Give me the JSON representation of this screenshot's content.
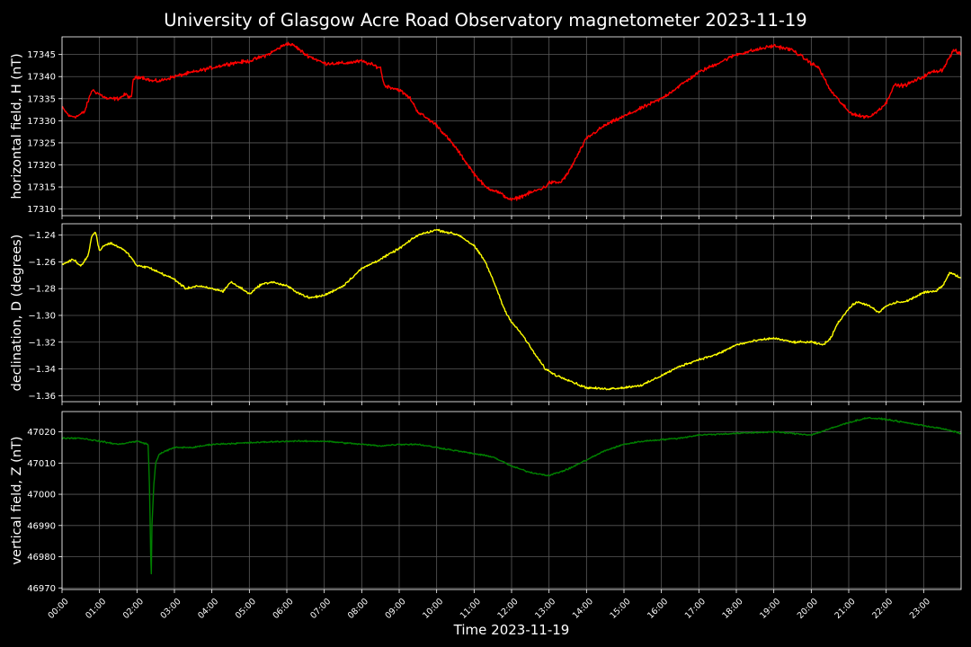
{
  "title": "University of Glasgow Acre Road Observatory magnetometer 2023-11-19",
  "colors": {
    "background": "#000000",
    "text": "#ffffff",
    "grid": "#5a5a5a"
  },
  "chart_data": {
    "type": "line",
    "grid": true,
    "xlabel": "Time 2023-11-19",
    "xlim": [
      0,
      24
    ],
    "x_ticks": [
      "00:00",
      "01:00",
      "02:00",
      "03:00",
      "04:00",
      "05:00",
      "06:00",
      "07:00",
      "08:00",
      "09:00",
      "10:00",
      "11:00",
      "12:00",
      "13:00",
      "14:00",
      "15:00",
      "16:00",
      "17:00",
      "18:00",
      "19:00",
      "20:00",
      "21:00",
      "22:00",
      "23:00"
    ],
    "x_ticks_hours": [
      0,
      1,
      2,
      3,
      4,
      5,
      6,
      7,
      8,
      9,
      10,
      11,
      12,
      13,
      14,
      15,
      16,
      17,
      18,
      19,
      20,
      21,
      22,
      23
    ],
    "panels": [
      {
        "ylabel": "horizontal field, H (nT)",
        "color": "#ff0000",
        "ylim": [
          17308.5,
          17349
        ],
        "yticks": [
          17310,
          17315,
          17320,
          17325,
          17330,
          17335,
          17340,
          17345
        ],
        "ytick_labels": [
          "17310",
          "17315",
          "17320",
          "17325",
          "17330",
          "17335",
          "17340",
          "17345"
        ],
        "noise": 0.6,
        "series": {
          "x": [
            0,
            0.2,
            0.4,
            0.6,
            0.8,
            1.0,
            1.2,
            1.5,
            1.7,
            1.85,
            1.9,
            2.1,
            2.4,
            2.6,
            3.0,
            3.5,
            4.0,
            4.5,
            5.0,
            5.5,
            6.0,
            6.2,
            6.5,
            7.0,
            7.5,
            8.0,
            8.5,
            8.6,
            9.0,
            9.3,
            9.5,
            10.0,
            10.5,
            11.0,
            11.3,
            11.6,
            12.0,
            12.3,
            12.6,
            12.9,
            13.0,
            13.3,
            13.5,
            14.0,
            14.5,
            15.0,
            15.5,
            16.0,
            16.5,
            17.0,
            17.5,
            18.0,
            18.5,
            19.0,
            19.5,
            20.0,
            20.2,
            20.5,
            20.8,
            21.0,
            21.3,
            21.6,
            22.0,
            22.2,
            22.5,
            23.0,
            23.2,
            23.5,
            23.8,
            24.0
          ],
          "y": [
            17333,
            17331,
            17331,
            17332,
            17337,
            17336,
            17335,
            17335,
            17336,
            17335,
            17339.5,
            17340,
            17339,
            17339,
            17340,
            17341,
            17342,
            17343,
            17343.5,
            17345,
            17347.5,
            17347,
            17345,
            17343,
            17343,
            17343.5,
            17342,
            17338,
            17337,
            17335,
            17332,
            17329,
            17324,
            17318,
            17315,
            17314,
            17312,
            17313,
            17314,
            17315,
            17316,
            17316,
            17318,
            17326,
            17329,
            17331,
            17333,
            17335,
            17338,
            17341,
            17343,
            17345,
            17346,
            17347,
            17346,
            17343,
            17342,
            17337,
            17334,
            17332,
            17331,
            17331,
            17334,
            17338,
            17338,
            17340,
            17341,
            17341.5,
            17346,
            17345
          ]
        }
      },
      {
        "ylabel": "declination, D (degrees)",
        "color": "#ffff00",
        "ylim": [
          -1.3645,
          -1.2315
        ],
        "yticks": [
          -1.36,
          -1.34,
          -1.32,
          -1.3,
          -1.28,
          -1.26,
          -1.24
        ],
        "ytick_labels": [
          "−1.36",
          "−1.34",
          "−1.32",
          "−1.30",
          "−1.28",
          "−1.26",
          "−1.24"
        ],
        "noise": 0.0012,
        "series": {
          "x": [
            0,
            0.3,
            0.5,
            0.7,
            0.8,
            0.9,
            1.0,
            1.1,
            1.3,
            1.6,
            1.8,
            2.0,
            2.3,
            2.6,
            3.0,
            3.3,
            3.6,
            4.0,
            4.3,
            4.5,
            4.8,
            5.0,
            5.3,
            5.6,
            6.0,
            6.3,
            6.6,
            7.0,
            7.5,
            8.0,
            8.5,
            9.0,
            9.5,
            10.0,
            10.3,
            10.6,
            11.0,
            11.3,
            11.6,
            11.8,
            12.0,
            12.3,
            12.6,
            12.9,
            13.2,
            13.5,
            13.8,
            14.0,
            14.5,
            15.0,
            15.5,
            16.0,
            16.5,
            17.0,
            17.5,
            18.0,
            18.5,
            19.0,
            19.5,
            20.0,
            20.3,
            20.5,
            20.7,
            21.0,
            21.2,
            21.5,
            21.8,
            22.0,
            22.3,
            22.5,
            23.0,
            23.3,
            23.5,
            23.7,
            24.0
          ],
          "y": [
            -1.262,
            -1.258,
            -1.263,
            -1.255,
            -1.24,
            -1.238,
            -1.252,
            -1.248,
            -1.246,
            -1.25,
            -1.255,
            -1.263,
            -1.264,
            -1.268,
            -1.273,
            -1.28,
            -1.278,
            -1.28,
            -1.282,
            -1.275,
            -1.28,
            -1.284,
            -1.277,
            -1.275,
            -1.278,
            -1.283,
            -1.287,
            -1.285,
            -1.278,
            -1.265,
            -1.258,
            -1.25,
            -1.24,
            -1.236,
            -1.238,
            -1.24,
            -1.248,
            -1.26,
            -1.28,
            -1.295,
            -1.305,
            -1.315,
            -1.328,
            -1.34,
            -1.345,
            -1.348,
            -1.352,
            -1.354,
            -1.355,
            -1.354,
            -1.352,
            -1.345,
            -1.338,
            -1.333,
            -1.329,
            -1.322,
            -1.319,
            -1.317,
            -1.32,
            -1.32,
            -1.322,
            -1.318,
            -1.306,
            -1.295,
            -1.29,
            -1.292,
            -1.298,
            -1.293,
            -1.29,
            -1.29,
            -1.283,
            -1.282,
            -1.278,
            -1.268,
            -1.272
          ]
        }
      },
      {
        "ylabel": "vertical field, Z (nT)",
        "color": "#008000",
        "ylim": [
          46969.5,
          47026.5
        ],
        "yticks": [
          46970,
          46980,
          46990,
          47000,
          47010,
          47020
        ],
        "ytick_labels": [
          "46970",
          "46980",
          "46990",
          "47000",
          "47010",
          "47020"
        ],
        "noise": 0.35,
        "series": {
          "x": [
            0,
            0.5,
            1.0,
            1.5,
            2.0,
            2.3,
            2.34,
            2.37,
            2.38,
            2.4,
            2.45,
            2.5,
            2.6,
            3.0,
            3.5,
            4.0,
            5.0,
            6.0,
            7.0,
            8.0,
            8.5,
            9.0,
            9.5,
            10.0,
            10.5,
            11.0,
            11.5,
            12.0,
            12.5,
            13.0,
            13.5,
            14.0,
            14.5,
            15.0,
            15.5,
            16.0,
            16.5,
            17.0,
            18.0,
            19.0,
            19.5,
            20.0,
            20.5,
            21.0,
            21.5,
            22.0,
            22.5,
            23.0,
            23.5,
            24.0
          ],
          "y": [
            47018,
            47018,
            47017,
            47016,
            47017,
            47016,
            47000,
            46978,
            46972,
            46990,
            47003,
            47010,
            47013,
            47015,
            47015,
            47016,
            47016.5,
            47017,
            47017,
            47016,
            47015.5,
            47016,
            47016,
            47015,
            47014,
            47013,
            47012,
            47009,
            47007,
            47006,
            47008,
            47011,
            47014,
            47016,
            47017,
            47017.5,
            47018,
            47019,
            47019.5,
            47020,
            47019.5,
            47019,
            47021,
            47023,
            47024.5,
            47024,
            47023,
            47022,
            47021,
            47019.5
          ]
        }
      }
    ]
  }
}
